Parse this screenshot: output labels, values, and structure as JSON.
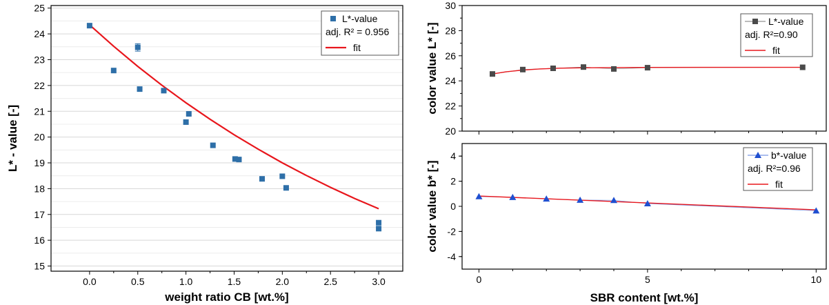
{
  "chart_data": [
    {
      "type": "scatter",
      "xlabel": "weight ratio CB [wt.%]",
      "ylabel": "L* - value [-]",
      "xlim": [
        -0.4,
        3.25
      ],
      "ylim": [
        14.8,
        25.1
      ],
      "xticks": [
        "0.0",
        "0.5",
        "1.0",
        "1.5",
        "2.0",
        "2.5",
        "3.0"
      ],
      "yticks": [
        "15",
        "16",
        "17",
        "18",
        "19",
        "20",
        "21",
        "22",
        "23",
        "24",
        "25"
      ],
      "grid": true,
      "legend_position": "top-right",
      "legend": [
        "L*-value",
        "adj. R² = 0.956",
        "fit"
      ],
      "series": [
        {
          "name": "L*-value",
          "marker": "square",
          "color": "#2e6fa8",
          "points": [
            [
              0.0,
              24.32
            ],
            [
              0.25,
              22.58
            ],
            [
              0.5,
              23.48
            ],
            [
              0.52,
              21.86
            ],
            [
              0.77,
              21.8
            ],
            [
              1.0,
              20.58
            ],
            [
              1.03,
              20.9
            ],
            [
              1.28,
              19.68
            ],
            [
              1.51,
              19.15
            ],
            [
              1.55,
              19.13
            ],
            [
              1.79,
              18.38
            ],
            [
              2.0,
              18.48
            ],
            [
              2.04,
              18.03
            ],
            [
              3.0,
              16.68
            ],
            [
              3.0,
              16.45
            ]
          ],
          "error_bars": [
            {
              "x": 0.5,
              "low": 23.33,
              "high": 23.62
            }
          ]
        },
        {
          "name": "fit",
          "type": "line",
          "color": "#e8161c",
          "points": [
            [
              0.0,
              24.35
            ],
            [
              0.25,
              23.52
            ],
            [
              0.5,
              22.74
            ],
            [
              0.75,
              22.01
            ],
            [
              1.0,
              21.33
            ],
            [
              1.25,
              20.69
            ],
            [
              1.5,
              20.09
            ],
            [
              1.75,
              19.53
            ],
            [
              2.0,
              19.0
            ],
            [
              2.25,
              18.51
            ],
            [
              2.5,
              18.05
            ],
            [
              2.75,
              17.62
            ],
            [
              3.0,
              17.22
            ]
          ]
        }
      ]
    },
    {
      "type": "line",
      "ylabel": "color value L* [-]",
      "xlim": [
        -0.5,
        10.3
      ],
      "ylim": [
        20,
        30
      ],
      "yticks": [
        "20",
        "22",
        "24",
        "26",
        "28",
        "30"
      ],
      "legend_position": "top-right",
      "legend": [
        "L*-value",
        "adj. R²=0.90",
        "fit"
      ],
      "series": [
        {
          "name": "L*-value",
          "marker": "square",
          "color": "#4a4a4a",
          "points": [
            [
              0.4,
              24.55
            ],
            [
              1.3,
              24.9
            ],
            [
              2.2,
              25.0
            ],
            [
              3.1,
              25.1
            ],
            [
              4.0,
              24.95
            ],
            [
              5.0,
              25.05
            ],
            [
              9.6,
              25.08
            ]
          ]
        },
        {
          "name": "fit",
          "type": "line",
          "color": "#e8161c",
          "points": [
            [
              0.4,
              24.55
            ],
            [
              0.8,
              24.72
            ],
            [
              1.3,
              24.86
            ],
            [
              1.8,
              24.95
            ],
            [
              2.4,
              25.01
            ],
            [
              3.0,
              25.04
            ],
            [
              4.0,
              25.06
            ],
            [
              5.0,
              25.07
            ],
            [
              7.0,
              25.08
            ],
            [
              9.6,
              25.08
            ]
          ]
        }
      ]
    },
    {
      "type": "line",
      "xlabel": "SBR content [wt.%]",
      "ylabel": "color value b* [-]",
      "xlim": [
        -0.5,
        10.3
      ],
      "ylim": [
        -5,
        5
      ],
      "xticks": [
        "0",
        "5",
        "10"
      ],
      "yticks": [
        "-4",
        "-2",
        "0",
        "2",
        "4"
      ],
      "legend_position": "top-right",
      "legend": [
        "b*-value",
        "adj. R²=0.96",
        "fit"
      ],
      "series": [
        {
          "name": "b*-value",
          "marker": "triangle",
          "color": "#1f4fd0",
          "points": [
            [
              0,
              0.78
            ],
            [
              1,
              0.72
            ],
            [
              2,
              0.6
            ],
            [
              3,
              0.5
            ],
            [
              4,
              0.48
            ],
            [
              5,
              0.22
            ],
            [
              10,
              -0.35
            ]
          ]
        },
        {
          "name": "fit",
          "type": "line",
          "color": "#e8161c",
          "points": [
            [
              0,
              0.82
            ],
            [
              10,
              -0.28
            ]
          ]
        }
      ]
    }
  ]
}
